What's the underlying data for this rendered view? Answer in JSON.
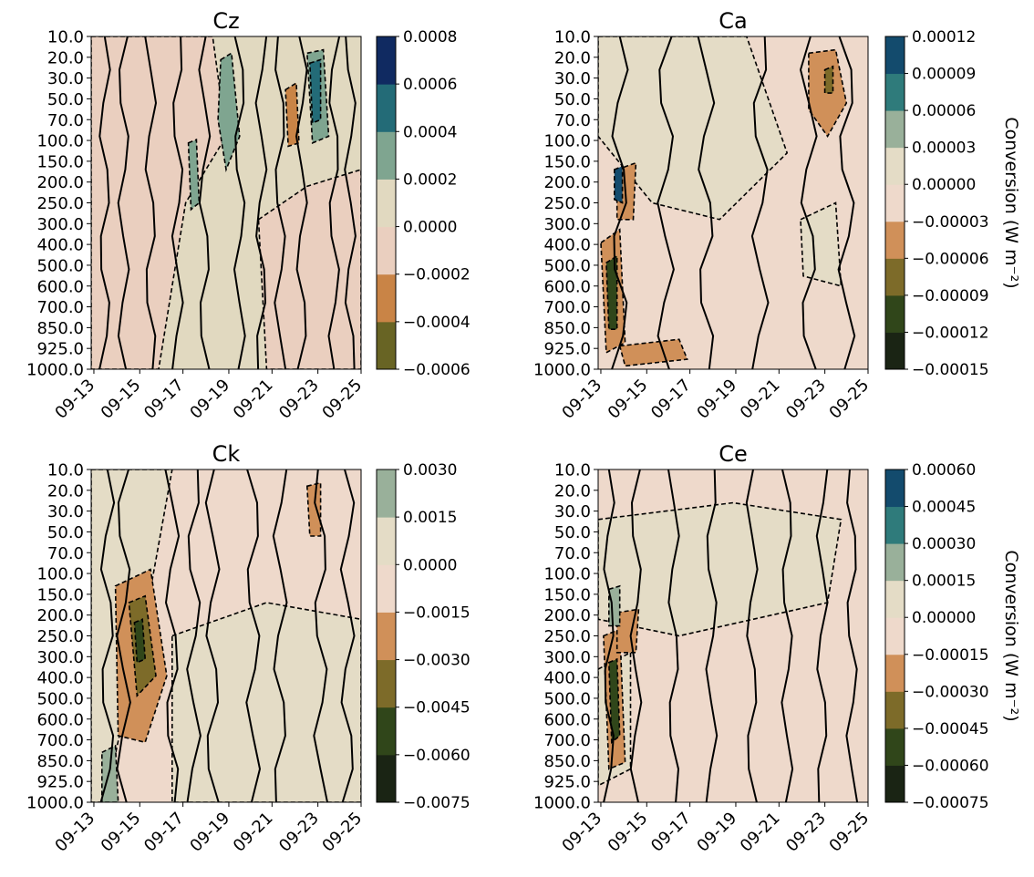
{
  "chart_data": [
    {
      "type": "contour",
      "title": "Cz",
      "x_ticks": [
        "09-13",
        "09-15",
        "09-17",
        "09-19",
        "09-21",
        "09-23",
        "09-25"
      ],
      "y_ticks": [
        "10.0",
        "20.0",
        "30.0",
        "50.0",
        "70.0",
        "100.0",
        "150.0",
        "200.0",
        "250.0",
        "300.0",
        "400.0",
        "500.0",
        "600.0",
        "700.0",
        "850.0",
        "925.0",
        "1000.0"
      ],
      "y_inverted": true,
      "colorbar_levels": [
        "−0.0006",
        "−0.0004",
        "−0.0002",
        "0.0000",
        "0.0002",
        "0.0004",
        "0.0006",
        "0.0008"
      ],
      "colorbar_colors": [
        "#686424",
        "#c98446",
        "#eacfbf",
        "#e1d9c0",
        "#7fa590",
        "#236b77",
        "#102a61"
      ],
      "colorbar_label": "",
      "background_color": "#e1d9c0"
    },
    {
      "type": "contour",
      "title": "Ca",
      "x_ticks": [
        "09-13",
        "09-15",
        "09-17",
        "09-19",
        "09-21",
        "09-23",
        "09-25"
      ],
      "y_ticks": [
        "10.0",
        "20.0",
        "30.0",
        "50.0",
        "70.0",
        "100.0",
        "150.0",
        "200.0",
        "250.0",
        "300.0",
        "400.0",
        "500.0",
        "600.0",
        "700.0",
        "850.0",
        "925.0",
        "1000.0"
      ],
      "y_inverted": true,
      "colorbar_levels": [
        "−0.00015",
        "−0.00012",
        "−0.00009",
        "−0.00006",
        "−0.00003",
        "0.00000",
        "0.00003",
        "0.00006",
        "0.00009",
        "0.00012"
      ],
      "colorbar_colors": [
        "#1a2414",
        "#30461a",
        "#7d6b29",
        "#d09059",
        "#eed9cb",
        "#e4dcc6",
        "#99b09a",
        "#2f7b7b",
        "#134b6d"
      ],
      "colorbar_label": "Conversion  (W m⁻²)",
      "background_color": "#eed9cb"
    },
    {
      "type": "contour",
      "title": "Ck",
      "x_ticks": [
        "09-13",
        "09-15",
        "09-17",
        "09-19",
        "09-21",
        "09-23",
        "09-25"
      ],
      "y_ticks": [
        "10.0",
        "20.0",
        "30.0",
        "50.0",
        "70.0",
        "100.0",
        "150.0",
        "200.0",
        "250.0",
        "300.0",
        "400.0",
        "500.0",
        "600.0",
        "700.0",
        "850.0",
        "925.0",
        "1000.0"
      ],
      "y_inverted": true,
      "colorbar_levels": [
        "−0.0075",
        "−0.0060",
        "−0.0045",
        "−0.0030",
        "−0.0015",
        "0.0000",
        "0.0015",
        "0.0030"
      ],
      "colorbar_colors": [
        "#1a2414",
        "#30461a",
        "#7d6b29",
        "#d09059",
        "#eed9cb",
        "#e4dcc6",
        "#99b09a"
      ],
      "colorbar_label": "",
      "background_color": "#eed9cb"
    },
    {
      "type": "contour",
      "title": "Ce",
      "x_ticks": [
        "09-13",
        "09-15",
        "09-17",
        "09-19",
        "09-21",
        "09-23",
        "09-25"
      ],
      "y_ticks": [
        "10.0",
        "20.0",
        "30.0",
        "50.0",
        "70.0",
        "100.0",
        "150.0",
        "200.0",
        "250.0",
        "300.0",
        "400.0",
        "500.0",
        "600.0",
        "700.0",
        "850.0",
        "925.0",
        "1000.0"
      ],
      "y_inverted": true,
      "colorbar_levels": [
        "−0.00075",
        "−0.00060",
        "−0.00045",
        "−0.00030",
        "−0.00015",
        "0.00000",
        "0.00015",
        "0.00030",
        "0.00045",
        "0.00060"
      ],
      "colorbar_colors": [
        "#1a2414",
        "#30461a",
        "#7d6b29",
        "#d09059",
        "#eed9cb",
        "#e4dcc6",
        "#99b09a",
        "#2f7b7b",
        "#134b6d"
      ],
      "colorbar_label": "Conversion  (W m⁻²)",
      "background_color": "#eed9cb"
    }
  ]
}
